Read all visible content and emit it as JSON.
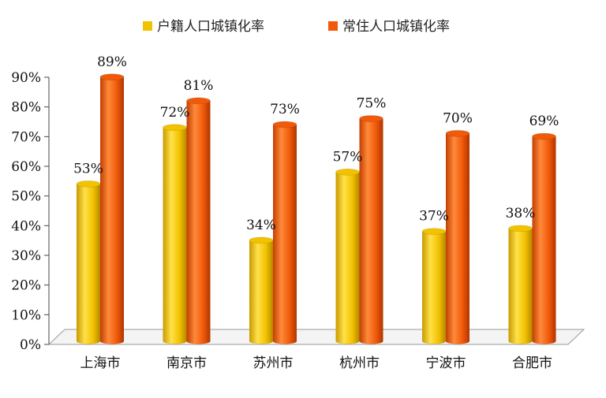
{
  "chart_data": {
    "type": "bar",
    "title": "",
    "xlabel": "",
    "ylabel": "",
    "categories": [
      "上海市",
      "南京市",
      "苏州市",
      "杭州市",
      "宁波市",
      "合肥市"
    ],
    "series": [
      {
        "name": "户籍人口城镇化率",
        "values": [
          53,
          72,
          34,
          57,
          37,
          38
        ],
        "color": "#f2c200"
      },
      {
        "name": "常住人口城镇化率",
        "values": [
          89,
          81,
          73,
          75,
          70,
          69
        ],
        "color": "#f05a0a"
      }
    ],
    "value_labels": [
      [
        "53%",
        "72%",
        "34%",
        "57%",
        "37%",
        "38%"
      ],
      [
        "89%",
        "81%",
        "73%",
        "75%",
        "70%",
        "69%"
      ]
    ],
    "ylim": [
      0,
      90
    ],
    "yticks": [
      0,
      10,
      20,
      30,
      40,
      50,
      60,
      70,
      80,
      90
    ],
    "ytick_labels": [
      "0%",
      "10%",
      "20%",
      "30%",
      "40%",
      "50%",
      "60%",
      "70%",
      "80%",
      "90%"
    ],
    "grid": false,
    "legend_position": "top-center",
    "style": "3d-cylinder"
  }
}
